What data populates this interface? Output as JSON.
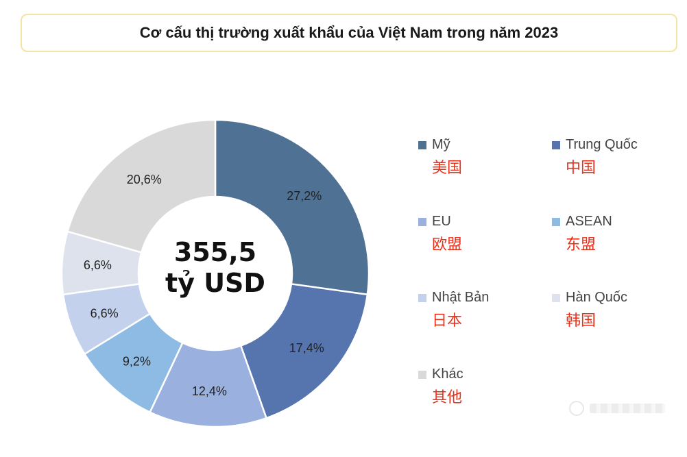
{
  "chart_data": {
    "type": "pie",
    "title": "Cơ cấu thị trường xuất khẩu của Việt Nam trong năm 2023",
    "center_label": [
      "355,5",
      "tỷ USD"
    ],
    "slices": [
      {
        "name": "Mỹ",
        "name_zh": "美国",
        "value": 27.2,
        "label": "27,2%",
        "color": "#4f7194"
      },
      {
        "name": "Trung Quốc",
        "name_zh": "中国",
        "value": 17.4,
        "label": "17,4%",
        "color": "#5674ad"
      },
      {
        "name": "EU",
        "name_zh": "欧盟",
        "value": 12.4,
        "label": "12,4%",
        "color": "#9ab0de"
      },
      {
        "name": "ASEAN",
        "name_zh": "东盟",
        "value": 9.2,
        "label": "9,2%",
        "color": "#8dbbe4"
      },
      {
        "name": "Nhật Bản",
        "name_zh": "日本",
        "value": 6.6,
        "label": "6,6%",
        "color": "#c4d1ec"
      },
      {
        "name": "Hàn Quốc",
        "name_zh": "韩国",
        "value": 6.6,
        "label": "6,6%",
        "color": "#dde2ec"
      },
      {
        "name": "Khác",
        "name_zh": "其他",
        "value": 20.6,
        "label": "20,6%",
        "color": "#d9d9d9"
      }
    ],
    "legend": "right"
  }
}
